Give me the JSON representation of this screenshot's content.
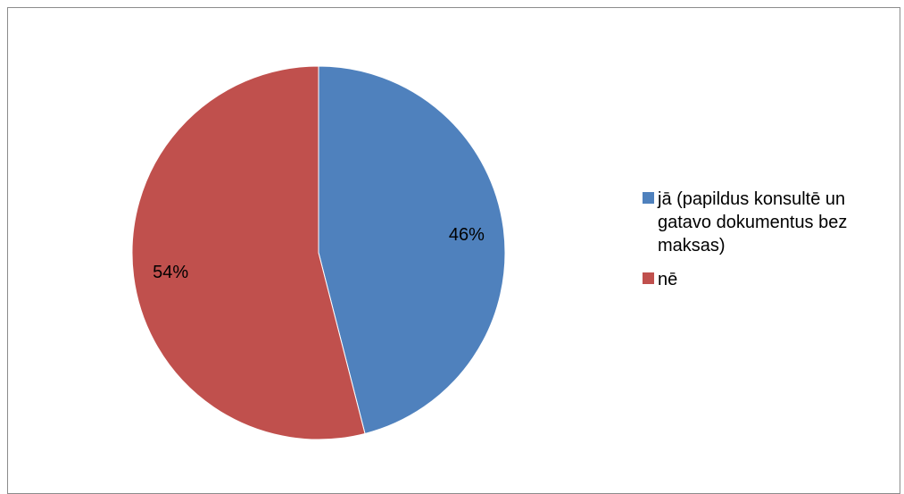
{
  "chart_data": {
    "type": "pie",
    "categories": [
      "jā (papildus konsultē un gatavo dokumentus bez maksas)",
      "nē"
    ],
    "values": [
      46,
      54
    ],
    "labels": [
      "46%",
      "54%"
    ],
    "colors": [
      "#4f81bd",
      "#c0504d"
    ],
    "legend_position": "right"
  }
}
